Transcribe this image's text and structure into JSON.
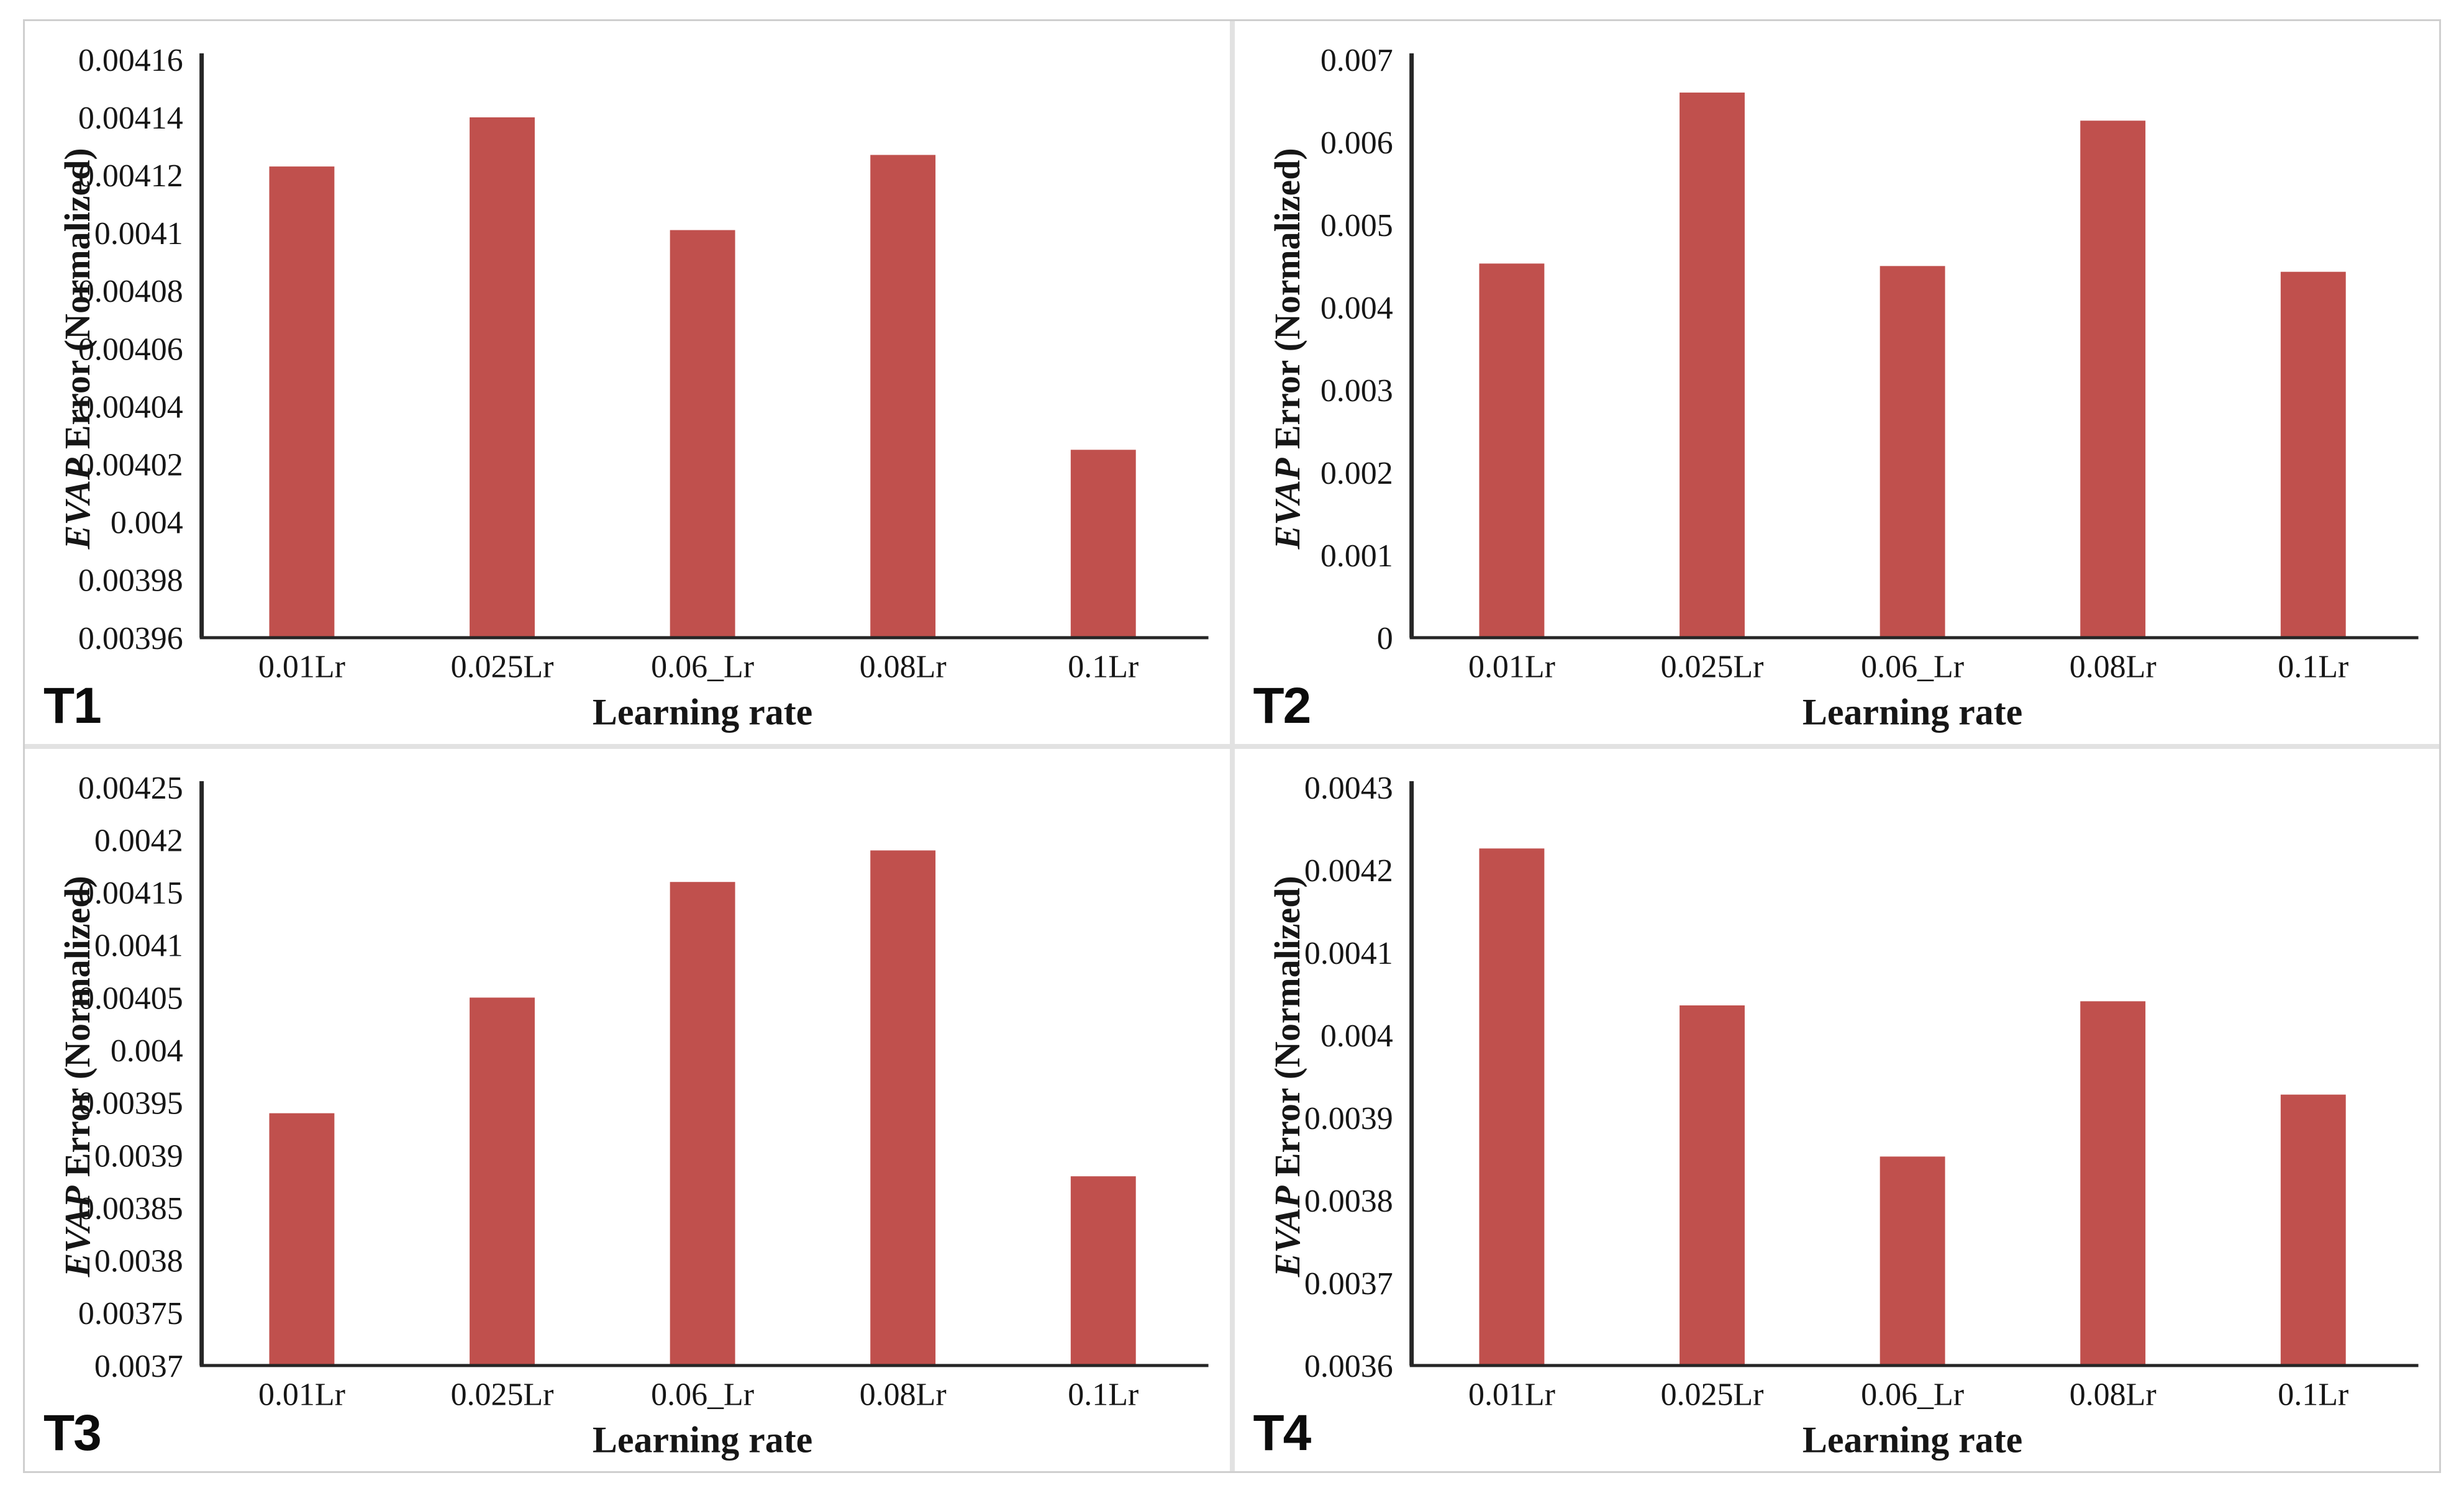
{
  "figure": {
    "bar_color": "#c0504d",
    "axis_color": "#262626",
    "text_color": "#161616",
    "frame_border_color": "#cfcfcf",
    "divider_color": "#e2e2e2",
    "background": "#ffffff"
  },
  "chart_data": [
    {
      "type": "bar",
      "panel_label": "T1",
      "ylabel_italic": "EVAP",
      "ylabel_rest": " Error (Normalized)",
      "xlabel": "Learning rate",
      "categories": [
        "0.01Lr",
        "0.025Lr",
        "0.06_Lr",
        "0.08Lr",
        "0.1Lr"
      ],
      "values": [
        0.004123,
        0.00414,
        0.004101,
        0.004127,
        0.004025
      ],
      "ylim": [
        0.00396,
        0.00416
      ],
      "y_ticks": [
        "0.00416",
        "0.00414",
        "0.00412",
        "0.0041",
        "0.00408",
        "0.00406",
        "0.00404",
        "0.00402",
        "0.004",
        "0.00398",
        "0.00396"
      ],
      "grid": false,
      "legend": null
    },
    {
      "type": "bar",
      "panel_label": "T2",
      "ylabel_italic": "EVAP",
      "ylabel_rest": " Error (Normalized)",
      "xlabel": "Learning rate",
      "categories": [
        "0.01Lr",
        "0.025Lr",
        "0.06_Lr",
        "0.08Lr",
        "0.1Lr"
      ],
      "values": [
        0.00453,
        0.0066,
        0.0045,
        0.00626,
        0.00443
      ],
      "ylim": [
        0,
        0.007
      ],
      "y_ticks": [
        "0.007",
        "0.006",
        "0.005",
        "0.004",
        "0.003",
        "0.002",
        "0.001",
        "0"
      ],
      "grid": false,
      "legend": null
    },
    {
      "type": "bar",
      "panel_label": "T3",
      "ylabel_italic": "EVAP",
      "ylabel_rest": " Error (Normalized)",
      "xlabel": "Learning rate",
      "categories": [
        "0.01Lr",
        "0.025Lr",
        "0.06_Lr",
        "0.08Lr",
        "0.1Lr"
      ],
      "values": [
        0.00394,
        0.00405,
        0.00416,
        0.00419,
        0.00388
      ],
      "ylim": [
        0.0037,
        0.00425
      ],
      "y_ticks": [
        "0.00425",
        "0.0042",
        "0.00415",
        "0.0041",
        "0.00405",
        "0.004",
        "0.00395",
        "0.0039",
        "0.00385",
        "0.0038",
        "0.00375",
        "0.0037"
      ],
      "grid": false,
      "legend": null
    },
    {
      "type": "bar",
      "panel_label": "T4",
      "ylabel_italic": "EVAP",
      "ylabel_rest": " Error (Normalized)",
      "xlabel": "Learning rate",
      "categories": [
        "0.01Lr",
        "0.025Lr",
        "0.06_Lr",
        "0.08Lr",
        "0.1Lr"
      ],
      "values": [
        0.004226,
        0.004036,
        0.003853,
        0.004041,
        0.003928
      ],
      "ylim": [
        0.0036,
        0.0043
      ],
      "y_ticks": [
        "0.0043",
        "0.0042",
        "0.0041",
        "0.004",
        "0.0039",
        "0.0038",
        "0.0037",
        "0.0036"
      ],
      "grid": false,
      "legend": null
    }
  ]
}
